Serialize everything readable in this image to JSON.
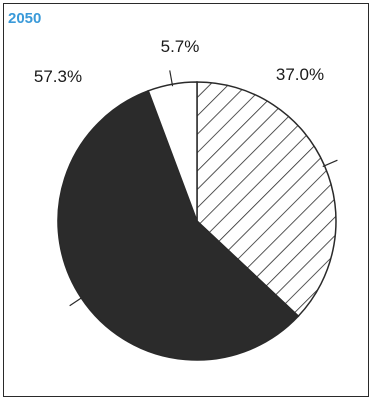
{
  "chart_data": {
    "type": "pie",
    "title": "2050",
    "slices": [
      {
        "label": "37.0%",
        "value": 37.0,
        "fill": "hatch"
      },
      {
        "label": "57.3%",
        "value": 57.3,
        "fill": "#2b2b2b"
      },
      {
        "label": "5.7%",
        "value": 5.7,
        "fill": "#ffffff"
      }
    ],
    "start_angle_deg": 0,
    "direction": "clockwise"
  },
  "colors": {
    "title": "#3a9ad9",
    "outline": "#2a2a2a",
    "hatch": "#2a2a2a"
  }
}
